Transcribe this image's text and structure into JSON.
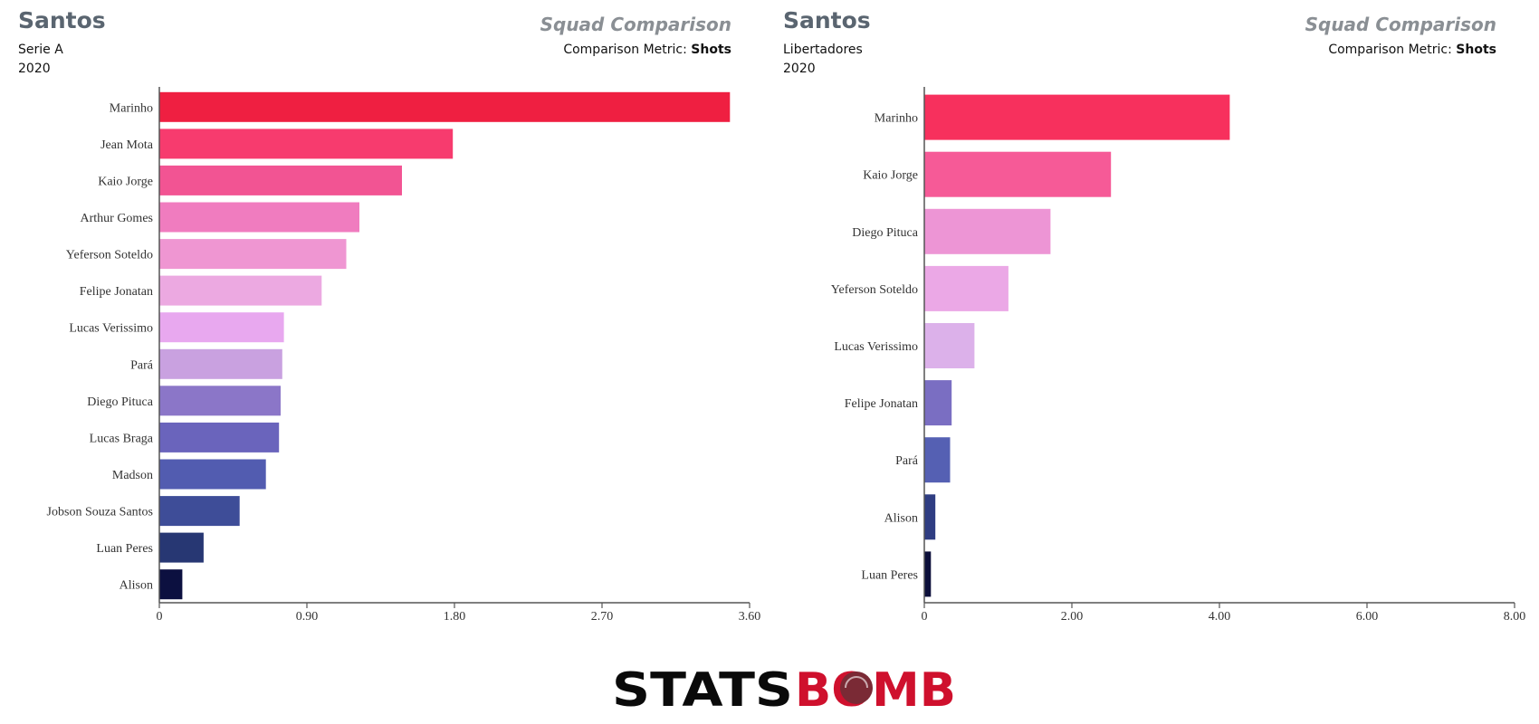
{
  "panels": [
    {
      "team": "Santos",
      "competition": "Serie A",
      "season": "2020",
      "title": "Squad Comparison",
      "metric_label": "Comparison Metric:",
      "metric_value": "Shots"
    },
    {
      "team": "Santos",
      "competition": "Libertadores",
      "season": "2020",
      "title": "Squad Comparison",
      "metric_label": "Comparison Metric:",
      "metric_value": "Shots"
    }
  ],
  "chart_data": [
    {
      "type": "bar",
      "orientation": "horizontal",
      "title": "Squad Comparison",
      "xlabel": "",
      "ylabel": "",
      "xlim": [
        0,
        3.6
      ],
      "ticks": [
        "0",
        "0.90",
        "1.80",
        "2.70",
        "3.60"
      ],
      "tick_values": [
        0,
        0.9,
        1.8,
        2.7,
        3.6
      ],
      "categories": [
        "Marinho",
        "Jean Mota",
        "Kaio Jorge",
        "Arthur Gomes",
        "Yeferson Soteldo",
        "Felipe Jonatan",
        "Lucas Verissimo",
        "Pará",
        "Diego Pituca",
        "Lucas Braga",
        "Madson",
        "Jobson Souza Santos",
        "Luan Peres",
        "Alison"
      ],
      "values": [
        3.48,
        1.79,
        1.48,
        1.22,
        1.14,
        0.99,
        0.76,
        0.75,
        0.74,
        0.73,
        0.65,
        0.49,
        0.27,
        0.14
      ],
      "colors": [
        "#ef1f41",
        "#f73b6e",
        "#f25493",
        "#f07cbf",
        "#ef96d2",
        "#eca9e1",
        "#e8a8ef",
        "#c9a1e0",
        "#8b76c8",
        "#6a64bc",
        "#525cb0",
        "#3e4d98",
        "#273773",
        "#0c1040"
      ],
      "grid": false
    },
    {
      "type": "bar",
      "orientation": "horizontal",
      "title": "Squad Comparison",
      "xlabel": "",
      "ylabel": "",
      "xlim": [
        0,
        8
      ],
      "ticks": [
        "0",
        "2.00",
        "4.00",
        "6.00",
        "8.00"
      ],
      "tick_values": [
        0,
        2,
        4,
        6,
        8
      ],
      "categories": [
        "Marinho",
        "Kaio Jorge",
        "Diego Pituca",
        "Yeferson Soteldo",
        "Lucas Verissimo",
        "Felipe Jonatan",
        "Pará",
        "Alison",
        "Luan Peres"
      ],
      "values": [
        4.14,
        2.53,
        1.71,
        1.14,
        0.68,
        0.37,
        0.35,
        0.15,
        0.09
      ],
      "colors": [
        "#f7305d",
        "#f65a97",
        "#ed95d5",
        "#eba8e6",
        "#dcb1ea",
        "#7a6ec2",
        "#5560b3",
        "#2f3d82",
        "#0c0f3a"
      ],
      "grid": false
    }
  ],
  "brand": {
    "part1": "STATS",
    "part2": "BOMB",
    "dark_color": "#0a0a0a",
    "accent_color": "#cf102d"
  }
}
